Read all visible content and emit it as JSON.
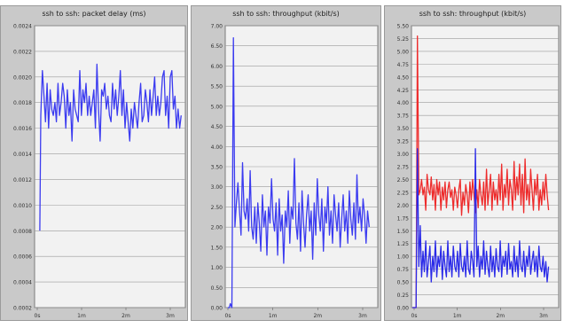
{
  "chart_data": [
    {
      "type": "line",
      "title": "ssh to ssh: packet delay (ms)",
      "xlabel": "",
      "ylabel": "",
      "ylim": [
        0.0002,
        0.0024
      ],
      "xlim": [
        0,
        2.9
      ],
      "yticks": [
        "0.0024",
        "0.0022",
        "0.0020",
        "0.0018",
        "0.0016",
        "0.0014",
        "0.0012",
        "0.0010",
        "0.0008",
        "0.0006",
        "0.0004",
        "0.0002"
      ],
      "xticks": [
        "0s",
        "1m",
        "2m",
        "3m"
      ],
      "grid": true,
      "series": [
        {
          "color": "#3b3bf0",
          "x": [
            0.1,
            0.12,
            0.15,
            0.18,
            0.21,
            0.24,
            0.27,
            0.3,
            0.33,
            0.36,
            0.39,
            0.42,
            0.45,
            0.48,
            0.51,
            0.54,
            0.57,
            0.6,
            0.63,
            0.66,
            0.69,
            0.72,
            0.75,
            0.78,
            0.81,
            0.84,
            0.87,
            0.9,
            0.93,
            0.96,
            0.99,
            1.02,
            1.05,
            1.08,
            1.11,
            1.14,
            1.17,
            1.2,
            1.23,
            1.26,
            1.29,
            1.32,
            1.35,
            1.38,
            1.41,
            1.44,
            1.47,
            1.5,
            1.53,
            1.56,
            1.59,
            1.62,
            1.65,
            1.68,
            1.71,
            1.74,
            1.77,
            1.8,
            1.83,
            1.86,
            1.89,
            1.92,
            1.95,
            1.98,
            2.01,
            2.04,
            2.07,
            2.1,
            2.13,
            2.16,
            2.19,
            2.22,
            2.25,
            2.28,
            2.31,
            2.34,
            2.37,
            2.4,
            2.43,
            2.46,
            2.49,
            2.52,
            2.55,
            2.58,
            2.61,
            2.64,
            2.67,
            2.7,
            2.73,
            2.76,
            2.79,
            2.82
          ],
          "values": [
            0.0008,
            0.0017,
            0.00205,
            0.00185,
            0.00165,
            0.00195,
            0.0016,
            0.0019,
            0.00175,
            0.0017,
            0.0018,
            0.00165,
            0.00195,
            0.0017,
            0.0018,
            0.00195,
            0.00185,
            0.0016,
            0.0019,
            0.0017,
            0.0018,
            0.0015,
            0.0019,
            0.00175,
            0.0017,
            0.00165,
            0.00205,
            0.0017,
            0.0019,
            0.0018,
            0.00195,
            0.0017,
            0.00185,
            0.0017,
            0.0018,
            0.0019,
            0.0016,
            0.0021,
            0.00175,
            0.0015,
            0.0019,
            0.00185,
            0.00195,
            0.00175,
            0.00185,
            0.0017,
            0.00165,
            0.00195,
            0.00175,
            0.0019,
            0.0017,
            0.00185,
            0.00205,
            0.0017,
            0.0019,
            0.0016,
            0.0018,
            0.00165,
            0.0015,
            0.00175,
            0.0016,
            0.0018,
            0.0017,
            0.0016,
            0.0018,
            0.00195,
            0.00165,
            0.0017,
            0.0019,
            0.0018,
            0.00165,
            0.0019,
            0.0017,
            0.00185,
            0.002,
            0.0017,
            0.00185,
            0.0017,
            0.0018,
            0.002,
            0.00205,
            0.0017,
            0.00185,
            0.0016,
            0.002,
            0.00205,
            0.00175,
            0.00185,
            0.0016,
            0.00175,
            0.0016,
            0.0017
          ]
        }
      ]
    },
    {
      "type": "line",
      "title": "ssh to ssh: throughput (kbit/s)",
      "xlabel": "",
      "ylabel": "",
      "ylim": [
        0,
        7.0
      ],
      "xlim": [
        0,
        3.0
      ],
      "yticks": [
        "7.00",
        "6.50",
        "6.00",
        "5.50",
        "5.00",
        "4.50",
        "4.00",
        "3.50",
        "3.00",
        "2.50",
        "2.00",
        "1.50",
        "1.00",
        "0.50",
        "0.00"
      ],
      "xticks": [
        "0s",
        "1m",
        "2m",
        "3m"
      ],
      "grid": true,
      "series": [
        {
          "color": "#3b3bf0",
          "x": [
            0.05,
            0.08,
            0.1,
            0.13,
            0.16,
            0.19,
            0.22,
            0.25,
            0.28,
            0.31,
            0.34,
            0.37,
            0.4,
            0.43,
            0.46,
            0.49,
            0.52,
            0.55,
            0.58,
            0.61,
            0.64,
            0.67,
            0.7,
            0.73,
            0.76,
            0.79,
            0.82,
            0.85,
            0.88,
            0.91,
            0.94,
            0.97,
            1.0,
            1.03,
            1.06,
            1.09,
            1.12,
            1.15,
            1.18,
            1.21,
            1.24,
            1.27,
            1.3,
            1.33,
            1.36,
            1.39,
            1.42,
            1.45,
            1.48,
            1.51,
            1.54,
            1.57,
            1.6,
            1.63,
            1.66,
            1.69,
            1.72,
            1.75,
            1.78,
            1.81,
            1.84,
            1.87,
            1.9,
            1.93,
            1.96,
            1.99,
            2.02,
            2.05,
            2.08,
            2.11,
            2.14,
            2.17,
            2.2,
            2.23,
            2.26,
            2.29,
            2.32,
            2.35,
            2.38,
            2.41,
            2.44,
            2.47,
            2.5,
            2.53,
            2.56,
            2.59,
            2.62,
            2.65,
            2.68,
            2.71,
            2.74,
            2.77,
            2.8,
            2.83
          ],
          "values": [
            0.0,
            0.0,
            0.1,
            0.0,
            6.7,
            2.0,
            2.6,
            3.1,
            2.4,
            1.8,
            3.6,
            2.4,
            2.2,
            2.7,
            1.9,
            3.4,
            2.0,
            1.7,
            2.5,
            1.6,
            2.6,
            2.1,
            1.4,
            2.8,
            2.0,
            2.4,
            1.3,
            2.5,
            2.1,
            3.2,
            2.2,
            1.9,
            2.6,
            1.3,
            2.7,
            1.9,
            2.3,
            1.1,
            2.4,
            2.0,
            2.9,
            1.6,
            2.5,
            2.2,
            3.7,
            2.1,
            1.7,
            2.6,
            1.4,
            2.9,
            2.1,
            1.5,
            2.3,
            2.8,
            1.9,
            2.4,
            1.2,
            2.6,
            1.8,
            3.2,
            2.3,
            1.9,
            2.7,
            1.4,
            2.5,
            2.1,
            3.0,
            1.8,
            2.4,
            1.6,
            2.8,
            2.3,
            1.9,
            2.6,
            1.5,
            2.2,
            2.8,
            1.9,
            2.4,
            1.6,
            2.9,
            2.2,
            1.8,
            2.6,
            1.7,
            3.3,
            2.1,
            2.5,
            1.9,
            2.7,
            2.3,
            1.6,
            2.4,
            2.0
          ]
        }
      ]
    },
    {
      "type": "line",
      "title": "ssh to ssh: throughput (kbit/s)",
      "xlabel": "",
      "ylabel": "",
      "ylim": [
        0,
        5.5
      ],
      "xlim": [
        0,
        3.2
      ],
      "yticks": [
        "5.50",
        "5.25",
        "5.00",
        "4.75",
        "4.50",
        "4.25",
        "4.00",
        "3.75",
        "3.50",
        "3.25",
        "3.00",
        "2.75",
        "2.50",
        "2.25",
        "2.00",
        "1.75",
        "1.50",
        "1.25",
        "1.00",
        "0.75",
        "0.50",
        "0.25",
        "0.00"
      ],
      "xticks": [
        "0s",
        "1m",
        "2m",
        "3m"
      ],
      "grid": true,
      "series": [
        {
          "color": "#ee2b2b",
          "x": [
            0.02,
            0.06,
            0.1,
            0.13,
            0.16,
            0.19,
            0.22,
            0.25,
            0.28,
            0.31,
            0.34,
            0.37,
            0.4,
            0.43,
            0.46,
            0.49,
            0.52,
            0.55,
            0.58,
            0.61,
            0.64,
            0.67,
            0.7,
            0.73,
            0.76,
            0.79,
            0.82,
            0.85,
            0.88,
            0.91,
            0.94,
            0.97,
            1.0,
            1.03,
            1.06,
            1.09,
            1.12,
            1.15,
            1.18,
            1.21,
            1.24,
            1.27,
            1.3,
            1.33,
            1.36,
            1.39,
            1.42,
            1.45,
            1.48,
            1.51,
            1.54,
            1.57,
            1.6,
            1.63,
            1.66,
            1.69,
            1.72,
            1.75,
            1.78,
            1.81,
            1.84,
            1.87,
            1.9,
            1.93,
            1.96,
            1.99,
            2.02,
            2.05,
            2.08,
            2.11,
            2.14,
            2.17,
            2.2,
            2.23,
            2.26,
            2.29,
            2.32,
            2.35,
            2.38,
            2.41,
            2.44,
            2.47,
            2.5,
            2.53,
            2.56,
            2.59,
            2.62,
            2.65,
            2.68,
            2.71,
            2.74,
            2.77,
            2.8,
            2.83,
            2.86,
            2.89,
            2.92,
            2.95,
            2.98
          ],
          "values": [
            0.0,
            0.0,
            0.0,
            5.3,
            2.2,
            2.3,
            2.5,
            2.2,
            2.35,
            1.9,
            2.6,
            2.3,
            2.2,
            2.55,
            2.1,
            2.4,
            1.9,
            2.5,
            2.2,
            2.45,
            1.9,
            2.35,
            2.1,
            2.45,
            1.95,
            2.3,
            2.45,
            2.15,
            2.3,
            1.9,
            2.35,
            2.2,
            1.95,
            2.3,
            2.5,
            1.8,
            2.25,
            2.0,
            2.4,
            2.2,
            1.85,
            2.45,
            2.1,
            2.5,
            2.2,
            1.85,
            2.3,
            1.95,
            2.5,
            2.2,
            2.0,
            2.45,
            1.9,
            2.7,
            2.0,
            2.3,
            2.6,
            1.9,
            2.45,
            2.1,
            2.3,
            2.0,
            2.6,
            2.1,
            2.8,
            1.9,
            2.4,
            2.15,
            2.7,
            2.0,
            2.5,
            2.3,
            1.9,
            2.85,
            2.1,
            2.55,
            2.2,
            2.8,
            2.0,
            2.6,
            1.85,
            2.9,
            2.1,
            2.4,
            2.0,
            2.7,
            2.3,
            1.9,
            2.5,
            2.2,
            2.6,
            1.9,
            2.3,
            2.0,
            2.45,
            2.1,
            2.6,
            2.2,
            1.9
          ]
        },
        {
          "color": "#2a2ae8",
          "x": [
            0.02,
            0.06,
            0.1,
            0.13,
            0.16,
            0.19,
            0.22,
            0.25,
            0.28,
            0.31,
            0.34,
            0.37,
            0.4,
            0.43,
            0.46,
            0.49,
            0.52,
            0.55,
            0.58,
            0.61,
            0.64,
            0.67,
            0.7,
            0.73,
            0.76,
            0.79,
            0.82,
            0.85,
            0.88,
            0.91,
            0.94,
            0.97,
            1.0,
            1.03,
            1.06,
            1.09,
            1.12,
            1.15,
            1.18,
            1.21,
            1.24,
            1.27,
            1.3,
            1.33,
            1.36,
            1.39,
            1.42,
            1.45,
            1.48,
            1.51,
            1.54,
            1.57,
            1.6,
            1.63,
            1.66,
            1.69,
            1.72,
            1.75,
            1.78,
            1.81,
            1.84,
            1.87,
            1.9,
            1.93,
            1.96,
            1.99,
            2.02,
            2.05,
            2.08,
            2.11,
            2.14,
            2.17,
            2.2,
            2.23,
            2.26,
            2.29,
            2.32,
            2.35,
            2.38,
            2.41,
            2.44,
            2.47,
            2.5,
            2.53,
            2.56,
            2.59,
            2.62,
            2.65,
            2.68,
            2.71,
            2.74,
            2.77,
            2.8,
            2.83,
            2.86,
            2.89,
            2.92,
            2.95,
            2.98
          ],
          "values": [
            0.0,
            0.0,
            0.0,
            3.1,
            0.8,
            1.6,
            0.6,
            1.1,
            0.7,
            1.3,
            0.6,
            0.9,
            1.2,
            0.5,
            1.0,
            0.7,
            1.3,
            0.6,
            1.0,
            0.8,
            1.2,
            0.55,
            1.1,
            0.8,
            0.6,
            1.3,
            0.7,
            1.0,
            0.6,
            1.2,
            0.8,
            0.7,
            1.1,
            0.6,
            1.25,
            0.8,
            0.7,
            1.0,
            0.6,
            1.3,
            0.75,
            0.65,
            1.1,
            0.9,
            0.6,
            3.1,
            0.8,
            1.2,
            0.6,
            1.0,
            0.75,
            1.3,
            0.65,
            1.1,
            0.8,
            0.6,
            1.2,
            0.7,
            1.0,
            0.6,
            1.15,
            0.8,
            0.7,
            1.3,
            0.6,
            1.0,
            0.8,
            1.1,
            0.65,
            1.25,
            0.75,
            0.9,
            0.6,
            1.2,
            0.7,
            1.0,
            0.6,
            1.3,
            0.8,
            0.7,
            1.1,
            0.6,
            1.0,
            0.8,
            1.2,
            0.65,
            0.9,
            1.1,
            0.7,
            1.0,
            0.6,
            1.2,
            0.8,
            0.7,
            1.0,
            0.6,
            0.9,
            0.5,
            0.8
          ]
        }
      ]
    }
  ]
}
